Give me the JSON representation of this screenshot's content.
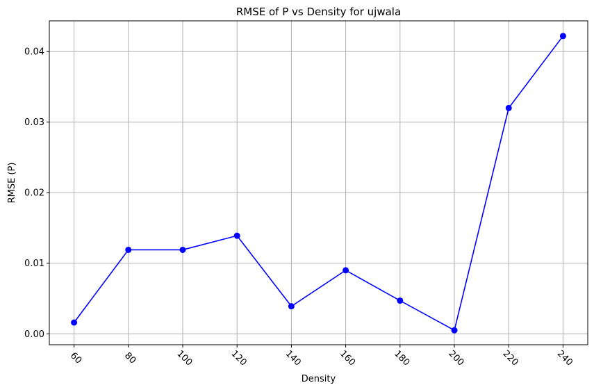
{
  "chart_data": {
    "type": "line",
    "title": "RMSE of P vs Density for ujwala",
    "xlabel": "Density",
    "ylabel": "RMSE (P)",
    "x": [
      60,
      80,
      100,
      120,
      140,
      160,
      180,
      200,
      220,
      240
    ],
    "x_tick_labels": [
      "60",
      "80",
      "100",
      "120",
      "140",
      "160",
      "180",
      "200",
      "220",
      "240"
    ],
    "y_ticks": [
      0.0,
      0.01,
      0.02,
      0.03,
      0.04
    ],
    "y_tick_labels": [
      "0.00",
      "0.01",
      "0.02",
      "0.03",
      "0.04"
    ],
    "xlim": [
      50.9,
      249.1
    ],
    "ylim": [
      -0.00155,
      0.04435
    ],
    "grid": true,
    "x_tick_rotation_deg": 45,
    "series": [
      {
        "values": [
          0.0016,
          0.0119,
          0.0119,
          0.0139,
          0.0039,
          0.009,
          0.0047,
          0.0005,
          0.032,
          0.0422
        ],
        "color": "#0000ff",
        "marker": "circle"
      }
    ]
  }
}
